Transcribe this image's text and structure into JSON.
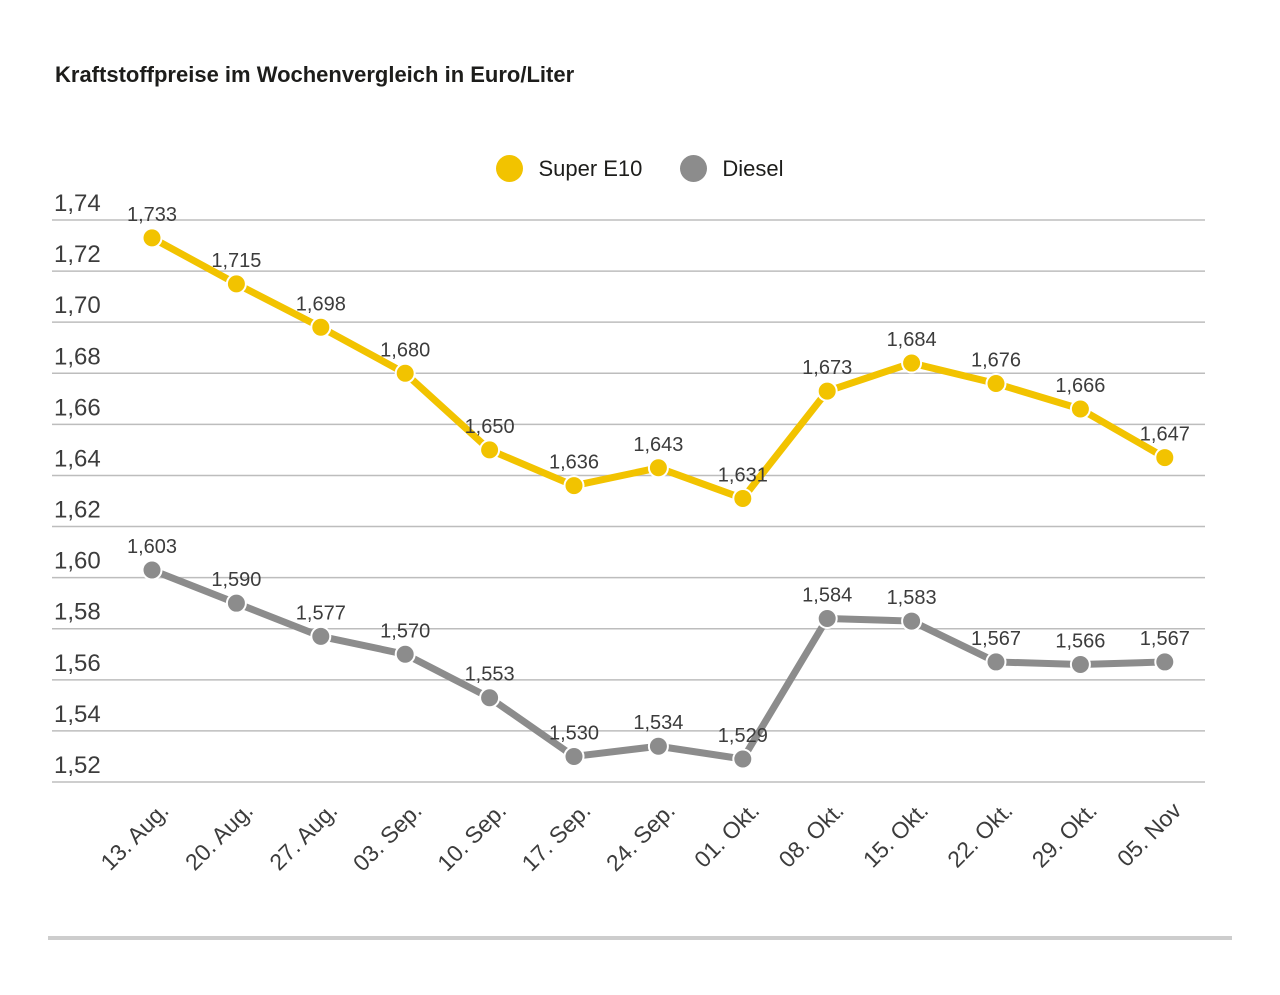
{
  "page": {
    "title": "Kraftstoffpreise im Wochenvergleich in Euro/Liter"
  },
  "legend": [
    {
      "label": "Super E10",
      "color": "#F2C300",
      "icon": "circle-marker"
    },
    {
      "label": "Diesel",
      "color": "#8C8C8C",
      "icon": "circle-marker"
    }
  ],
  "chart_data": {
    "type": "line",
    "title": "Kraftstoffpreise im Wochenvergleich in Euro/Liter",
    "unit": "Euro/Liter",
    "categories": [
      "13. Aug.",
      "20. Aug.",
      "27. Aug.",
      "03. Sep.",
      "10. Sep.",
      "17. Sep.",
      "24. Sep.",
      "01. Okt.",
      "08. Okt.",
      "15. Okt.",
      "22. Okt.",
      "29. Okt.",
      "05. Nov"
    ],
    "series": [
      {
        "name": "Super E10",
        "color": "#F2C300",
        "values": [
          1.733,
          1.715,
          1.698,
          1.68,
          1.65,
          1.636,
          1.643,
          1.631,
          1.673,
          1.684,
          1.676,
          1.666,
          1.647
        ]
      },
      {
        "name": "Diesel",
        "color": "#8C8C8C",
        "values": [
          1.603,
          1.59,
          1.577,
          1.57,
          1.553,
          1.53,
          1.534,
          1.529,
          1.584,
          1.583,
          1.567,
          1.566,
          1.567
        ]
      }
    ],
    "ylim": [
      1.52,
      1.74
    ],
    "ytick_step": 0.02,
    "ytick_labels": [
      "1,74",
      "1,72",
      "1,70",
      "1,68",
      "1,66",
      "1,64",
      "1,62",
      "1,60",
      "1,58",
      "1,56",
      "1,54",
      "1,52"
    ],
    "value_decimals": 3,
    "decimal_separator": ",",
    "grid": true,
    "legend_position": "top-center",
    "colors": {
      "gridline": "#bdbdbd",
      "axis_text": "#3c3c3c",
      "data_label_text": "#3c3c3c",
      "marker_outline": "#ffffff",
      "separator": "#cdcdcd"
    }
  }
}
